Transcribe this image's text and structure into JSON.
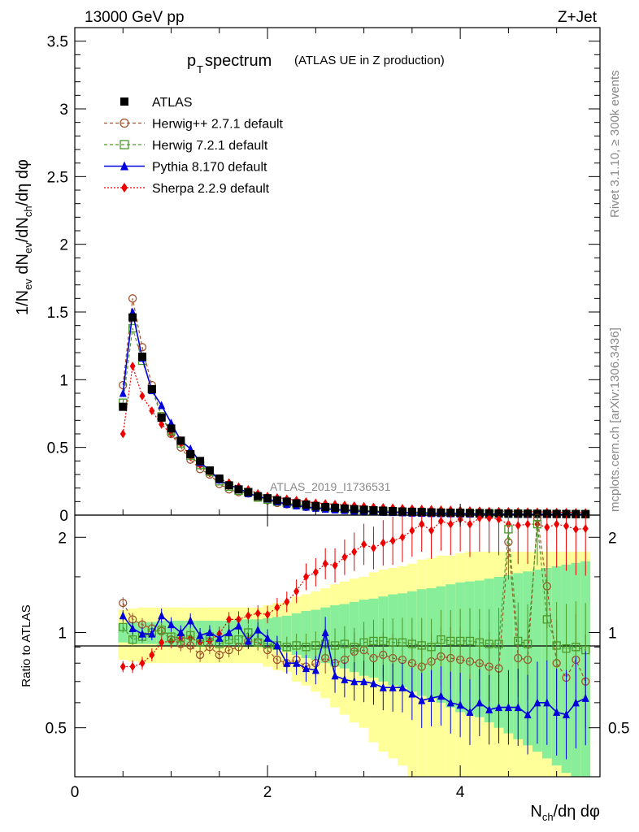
{
  "header": {
    "energy_label": "13000 GeV pp",
    "process_label": "Z+Jet",
    "side_label_top": "Rivet 3.1.10, ≥ 300k events",
    "side_label_bottom": "mcplots.cern.ch [arXiv:1306.3436]",
    "analysis_id": "ATLAS_2019_I1736531"
  },
  "colors": {
    "data": "#000000",
    "herwigpp": "#a0522d",
    "herwig7": "#4c9a2a",
    "pythia": "#0000dd",
    "sherpa": "#ee0000",
    "band_outer": "#ffff99",
    "band_inner": "#88ee99"
  },
  "chart_data": [
    {
      "type": "line",
      "title_main": "p",
      "title_sub": "T",
      "title_rest": " spectrum",
      "title_note": "(ATLAS UE in Z production)",
      "ylabel": "1/N_ev dN_ev/dN_ch/dη dφ",
      "ylabel_parts": [
        "1/N",
        "ev",
        " dN",
        "ev",
        "/dN",
        "ch",
        "/dη dφ"
      ],
      "xlim": [
        0,
        5.45
      ],
      "ylim": [
        0,
        3.6
      ],
      "yticks": [
        "0",
        "0.5",
        "1",
        "1.5",
        "2",
        "2.5",
        "3",
        "3.5"
      ],
      "x": [
        0.5,
        0.6,
        0.7,
        0.8,
        0.9,
        1.0,
        1.1,
        1.2,
        1.3,
        1.4,
        1.5,
        1.6,
        1.7,
        1.8,
        1.9,
        2.0,
        2.1,
        2.2,
        2.3,
        2.4,
        2.5,
        2.6,
        2.7,
        2.8,
        2.9,
        3.0,
        3.1,
        3.2,
        3.3,
        3.4,
        3.5,
        3.6,
        3.7,
        3.8,
        3.9,
        4.0,
        4.1,
        4.2,
        4.3,
        4.4,
        4.5,
        4.6,
        4.7,
        4.8,
        4.9,
        5.0,
        5.1,
        5.2,
        5.3
      ],
      "series": [
        {
          "name": "ATLAS",
          "key": "data",
          "values": [
            0.8,
            1.46,
            1.17,
            0.93,
            0.72,
            0.64,
            0.55,
            0.45,
            0.4,
            0.33,
            0.27,
            0.22,
            0.19,
            0.17,
            0.14,
            0.125,
            0.11,
            0.1,
            0.088,
            0.078,
            0.068,
            0.06,
            0.055,
            0.049,
            0.044,
            0.04,
            0.036,
            0.033,
            0.03,
            0.027,
            0.025,
            0.023,
            0.021,
            0.019,
            0.018,
            0.017,
            0.016,
            0.015,
            0.014,
            0.013,
            0.012,
            0.011,
            0.011,
            0.01,
            0.01,
            0.009,
            0.009,
            0.008,
            0.008
          ]
        },
        {
          "name": "Herwig++ 2.7.1 default",
          "key": "herwigpp",
          "values": [
            0.96,
            1.6,
            1.24,
            0.96,
            0.73,
            0.6,
            0.5,
            0.41,
            0.34,
            0.3,
            0.23,
            0.19,
            0.17,
            0.16,
            0.13,
            0.11,
            0.09,
            0.08,
            0.072,
            0.06,
            0.055,
            0.05,
            0.044,
            0.04,
            0.038,
            0.035,
            0.03,
            0.028,
            0.025,
            0.022,
            0.02,
            0.018,
            0.017,
            0.016,
            0.015,
            0.014,
            0.013,
            0.012,
            0.011,
            0.01,
            0.01,
            0.009,
            0.009,
            0.008,
            0.008,
            0.007,
            0.007,
            0.007,
            0.006
          ]
        },
        {
          "name": "Herwig 7.2.1 default",
          "key": "herwig7",
          "values": [
            0.83,
            1.38,
            1.14,
            0.93,
            0.73,
            0.62,
            0.53,
            0.44,
            0.37,
            0.32,
            0.25,
            0.21,
            0.18,
            0.17,
            0.13,
            0.115,
            0.1,
            0.09,
            0.08,
            0.07,
            0.062,
            0.055,
            0.05,
            0.045,
            0.04,
            0.037,
            0.034,
            0.031,
            0.028,
            0.025,
            0.023,
            0.021,
            0.019,
            0.018,
            0.017,
            0.016,
            0.015,
            0.014,
            0.013,
            0.012,
            0.011,
            0.011,
            0.01,
            0.01,
            0.009,
            0.009,
            0.008,
            0.008,
            0.007
          ]
        },
        {
          "name": "Pythia 8.170 default",
          "key": "pythia",
          "values": [
            0.9,
            1.5,
            1.16,
            0.92,
            0.81,
            0.68,
            0.55,
            0.49,
            0.39,
            0.33,
            0.26,
            0.22,
            0.2,
            0.16,
            0.14,
            0.12,
            0.1,
            0.08,
            0.07,
            0.06,
            0.052,
            0.045,
            0.04,
            0.035,
            0.031,
            0.028,
            0.025,
            0.022,
            0.02,
            0.018,
            0.016,
            0.014,
            0.013,
            0.012,
            0.011,
            0.01,
            0.009,
            0.009,
            0.008,
            0.008,
            0.007,
            0.007,
            0.006,
            0.006,
            0.006,
            0.005,
            0.005,
            0.005,
            0.005
          ]
        },
        {
          "name": "Sherpa 2.2.9 default",
          "key": "sherpa",
          "values": [
            0.6,
            1.1,
            0.88,
            0.77,
            0.67,
            0.6,
            0.53,
            0.43,
            0.37,
            0.31,
            0.27,
            0.24,
            0.21,
            0.19,
            0.16,
            0.14,
            0.13,
            0.12,
            0.11,
            0.1,
            0.09,
            0.085,
            0.08,
            0.075,
            0.07,
            0.065,
            0.06,
            0.057,
            0.054,
            0.05,
            0.047,
            0.044,
            0.042,
            0.04,
            0.038,
            0.036,
            0.034,
            0.032,
            0.03,
            0.029,
            0.028,
            0.026,
            0.025,
            0.024,
            0.023,
            0.022,
            0.021,
            0.02,
            0.019
          ]
        }
      ]
    },
    {
      "type": "line",
      "ylabel": "Ratio to ATLAS",
      "xlabel": "N_ch/dη dφ",
      "xlabel_parts": [
        "N",
        "ch",
        "/dη dφ"
      ],
      "xlim": [
        0,
        5.45
      ],
      "ylim": [
        0.35,
        2.35
      ],
      "xticks": [
        "0",
        "2",
        "4"
      ],
      "yticks": [
        "0.5",
        "1",
        "2"
      ],
      "x": [
        0.5,
        0.6,
        0.7,
        0.8,
        0.9,
        1.0,
        1.1,
        1.2,
        1.3,
        1.4,
        1.5,
        1.6,
        1.7,
        1.8,
        1.9,
        2.0,
        2.1,
        2.2,
        2.3,
        2.4,
        2.5,
        2.6,
        2.7,
        2.8,
        2.9,
        3.0,
        3.1,
        3.2,
        3.3,
        3.4,
        3.5,
        3.6,
        3.7,
        3.8,
        3.9,
        4.0,
        4.1,
        4.2,
        4.3,
        4.4,
        4.5,
        4.6,
        4.7,
        4.8,
        4.9,
        5.0,
        5.1,
        5.2,
        5.3
      ],
      "band_outer": [
        0.18,
        0.19,
        0.2,
        0.2,
        0.2,
        0.2,
        0.2,
        0.2,
        0.2,
        0.2,
        0.2,
        0.2,
        0.2,
        0.2,
        0.2,
        0.22,
        0.24,
        0.25,
        0.3,
        0.32,
        0.35,
        0.38,
        0.42,
        0.45,
        0.48,
        0.5,
        0.55,
        0.58,
        0.6,
        0.62,
        0.65,
        0.7,
        0.72,
        0.75,
        0.75,
        0.78,
        0.8,
        0.8,
        0.8,
        0.8,
        0.8,
        0.8,
        0.8,
        0.8,
        0.8,
        0.8,
        0.8,
        0.8,
        0.8
      ],
      "band_inner": [
        0.07,
        0.08,
        0.08,
        0.08,
        0.09,
        0.09,
        0.09,
        0.09,
        0.09,
        0.09,
        0.09,
        0.09,
        0.1,
        0.1,
        0.1,
        0.11,
        0.12,
        0.13,
        0.15,
        0.17,
        0.18,
        0.2,
        0.22,
        0.23,
        0.25,
        0.27,
        0.28,
        0.3,
        0.32,
        0.33,
        0.35,
        0.37,
        0.38,
        0.4,
        0.42,
        0.44,
        0.45,
        0.46,
        0.48,
        0.5,
        0.52,
        0.54,
        0.56,
        0.58,
        0.6,
        0.62,
        0.64,
        0.66,
        0.68
      ],
      "series": [
        {
          "name": "Herwig++ 2.7.1 default",
          "key": "herwigpp",
          "values": [
            1.24,
            1.1,
            1.06,
            1.03,
            1.01,
            0.95,
            0.92,
            0.91,
            0.85,
            0.9,
            0.85,
            0.88,
            0.9,
            0.94,
            0.93,
            0.88,
            0.82,
            0.8,
            0.82,
            0.78,
            0.8,
            0.83,
            0.8,
            0.82,
            0.87,
            0.88,
            0.83,
            0.85,
            0.83,
            0.82,
            0.8,
            0.78,
            0.81,
            0.84,
            0.83,
            0.82,
            0.81,
            0.8,
            0.78,
            0.77,
            1.93,
            0.83,
            0.82,
            2.3,
            1.4,
            0.8,
            0.72,
            0.82,
            0.7
          ]
        },
        {
          "name": "Herwig 7.2.1 default",
          "key": "herwig7",
          "values": [
            1.04,
            0.95,
            0.97,
            1.0,
            1.02,
            0.97,
            0.96,
            0.98,
            0.93,
            0.97,
            0.92,
            0.95,
            0.95,
            1.0,
            0.93,
            0.92,
            0.91,
            0.9,
            0.91,
            0.9,
            0.91,
            0.92,
            0.91,
            0.92,
            0.9,
            0.93,
            0.94,
            0.94,
            0.93,
            0.93,
            0.92,
            0.91,
            0.9,
            0.95,
            0.94,
            0.94,
            0.94,
            0.93,
            0.92,
            0.92,
            2.12,
            0.94,
            0.92,
            2.2,
            1.1,
            0.91,
            0.89,
            0.9,
            0.88
          ]
        },
        {
          "name": "Pythia 8.170 default",
          "key": "pythia",
          "values": [
            1.13,
            1.03,
            0.99,
            0.99,
            1.13,
            1.06,
            1.0,
            1.09,
            0.98,
            1.0,
            0.96,
            1.0,
            1.05,
            0.94,
            1.02,
            0.96,
            0.91,
            0.8,
            0.8,
            0.77,
            0.76,
            1.0,
            0.73,
            0.71,
            0.7,
            0.7,
            0.69,
            0.67,
            0.67,
            0.67,
            0.64,
            0.61,
            0.62,
            0.63,
            0.6,
            0.59,
            0.56,
            0.6,
            0.57,
            0.58,
            0.58,
            0.58,
            0.55,
            0.6,
            0.6,
            0.56,
            0.55,
            0.6,
            0.62
          ]
        },
        {
          "name": "Sherpa 2.2.9 default",
          "key": "sherpa",
          "values": [
            0.78,
            0.78,
            0.8,
            0.85,
            0.93,
            0.94,
            0.96,
            0.96,
            0.93,
            0.94,
            0.99,
            1.1,
            1.1,
            1.13,
            1.15,
            1.14,
            1.2,
            1.25,
            1.35,
            1.5,
            1.55,
            1.65,
            1.63,
            1.73,
            1.8,
            1.9,
            1.85,
            1.92,
            1.95,
            2.0,
            2.1,
            2.2,
            2.1,
            2.25,
            2.2,
            2.28,
            2.2,
            2.3,
            2.3,
            2.28,
            2.2,
            2.18,
            2.2,
            2.2,
            2.15,
            2.2,
            2.17,
            2.12,
            2.13
          ]
        }
      ]
    }
  ]
}
